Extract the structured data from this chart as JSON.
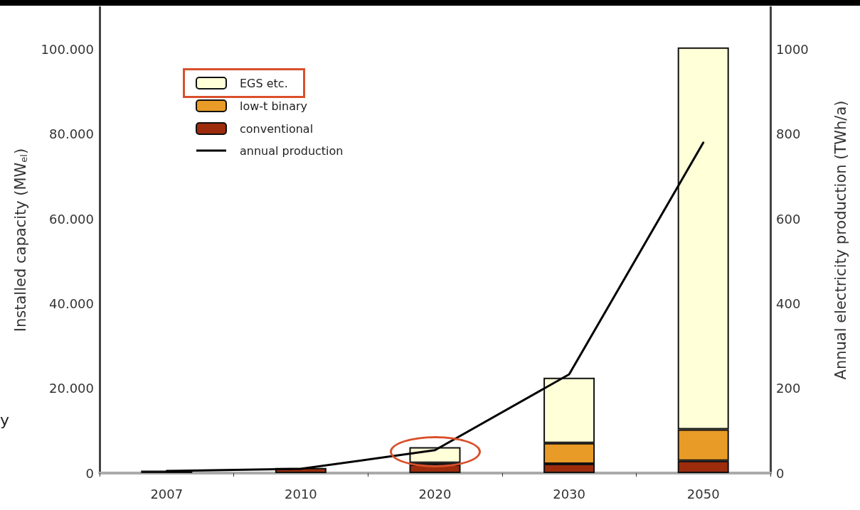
{
  "chart_data": {
    "type": "bar",
    "stacked": true,
    "categories": [
      "2007",
      "2010",
      "2020",
      "2030",
      "2050"
    ],
    "ylabel": "Installed capacity (MW$_{el}$)",
    "y2label": "Annual electricity production (TWh/a)",
    "ylim": [
      0,
      110000
    ],
    "yticks": [
      {
        "value": 0,
        "label": "0"
      },
      {
        "value": 20000,
        "label": "20.000"
      },
      {
        "value": 40000,
        "label": "40.000"
      },
      {
        "value": 60000,
        "label": "60.000"
      },
      {
        "value": 80000,
        "label": "80.000"
      },
      {
        "value": 100000,
        "label": "100.000"
      }
    ],
    "y2lim": [
      0,
      1100
    ],
    "y2ticks": [
      0,
      200,
      400,
      600,
      800,
      1000
    ],
    "series": [
      {
        "name": "conventional",
        "color": "#9c2c0c",
        "values": [
          600,
          1200,
          2000,
          2200,
          2900
        ]
      },
      {
        "name": "low-t binary",
        "color": "#e89b26",
        "values": [
          null,
          null,
          400,
          4900,
          7400
        ]
      },
      {
        "name": "EGS etc.",
        "color": "#ffffd8",
        "values": [
          null,
          null,
          3700,
          15400,
          90200
        ]
      },
      {
        "name": "annual production",
        "type": "line",
        "axis": "y2",
        "color": "#000000",
        "values": [
          5,
          10,
          54,
          233,
          780
        ]
      }
    ],
    "legend": "top left",
    "grid": false,
    "marker": "none",
    "line_style": "solid",
    "annotations": [
      "y"
    ]
  }
}
